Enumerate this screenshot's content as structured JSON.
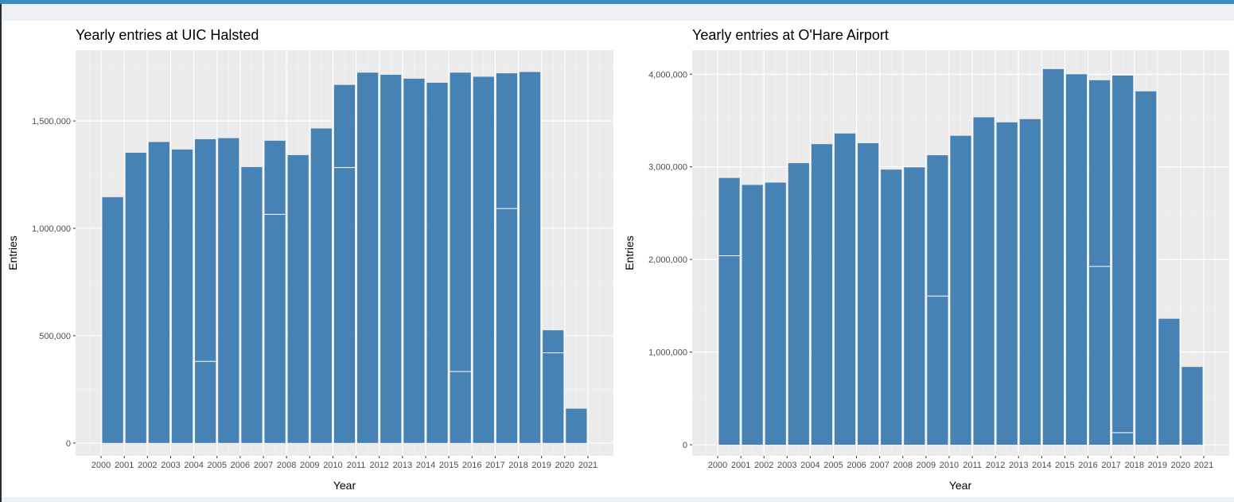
{
  "colors": {
    "bar": "#4682b4",
    "panel_bg": "#ebebeb",
    "grid_major": "#ffffff",
    "grid_minor": "#f5f5f5",
    "tick": "#4d4d4d",
    "accent_top": "#3c8dbc"
  },
  "chart_data": [
    {
      "type": "bar",
      "title": "Yearly entries at UIC Halsted",
      "xlabel": "Year",
      "ylabel": "Entries",
      "x_ticks": [
        "2000",
        "2001",
        "2002",
        "2003",
        "2004",
        "2005",
        "2006",
        "2007",
        "2008",
        "2009",
        "2010",
        "2011",
        "2012",
        "2013",
        "2014",
        "2015",
        "2016",
        "2017",
        "2018",
        "2019",
        "2020",
        "2021"
      ],
      "y_ticks": [
        0,
        500000,
        1000000,
        1500000
      ],
      "y_tick_labels": [
        "0",
        "500,000",
        "1,000,000",
        "1,500,000"
      ],
      "ylim": [
        -60000,
        1830000
      ],
      "grid": true,
      "categories": [
        "2001",
        "2002",
        "2003",
        "2004",
        "2005",
        "2006",
        "2007",
        "2008",
        "2009",
        "2010",
        "2011",
        "2012",
        "2013",
        "2014",
        "2015",
        "2016",
        "2017",
        "2018",
        "2019",
        "2020",
        "2021"
      ],
      "values": [
        1145000,
        1352000,
        1402000,
        1367000,
        1415000,
        1420000,
        1285000,
        1408000,
        1341000,
        1465000,
        1668000,
        1725000,
        1715000,
        1697000,
        1678000,
        1725000,
        1706000,
        1722000,
        1728000,
        525000,
        160000
      ],
      "segment_breaks": [
        {
          "category": "2005",
          "value": 380000
        },
        {
          "category": "2008",
          "value": 1065000
        },
        {
          "category": "2011",
          "value": 1283000
        },
        {
          "category": "2016",
          "value": 333000
        },
        {
          "category": "2018",
          "value": 1092000
        },
        {
          "category": "2020",
          "value": 420000
        }
      ]
    },
    {
      "type": "bar",
      "title": "Yearly entries at O'Hare Airport",
      "xlabel": "Year",
      "ylabel": "Entries",
      "x_ticks": [
        "2000",
        "2001",
        "2002",
        "2003",
        "2004",
        "2005",
        "2006",
        "2007",
        "2008",
        "2009",
        "2010",
        "2011",
        "2012",
        "2013",
        "2014",
        "2015",
        "2016",
        "2017",
        "2018",
        "2019",
        "2020",
        "2021"
      ],
      "y_ticks": [
        0,
        1000000,
        2000000,
        3000000,
        4000000
      ],
      "y_tick_labels": [
        "0",
        "1,000,000",
        "2,000,000",
        "3,000,000",
        "4,000,000"
      ],
      "ylim": [
        -120000,
        4260000
      ],
      "grid": true,
      "categories": [
        "2001",
        "2002",
        "2003",
        "2004",
        "2005",
        "2006",
        "2007",
        "2008",
        "2009",
        "2010",
        "2011",
        "2012",
        "2013",
        "2014",
        "2015",
        "2016",
        "2017",
        "2018",
        "2019",
        "2020",
        "2021"
      ],
      "values": [
        2880000,
        2805000,
        2830000,
        3040000,
        3245000,
        3360000,
        3255000,
        2970000,
        2995000,
        3125000,
        3335000,
        3535000,
        3480000,
        3515000,
        4055000,
        4000000,
        3935000,
        3985000,
        3815000,
        1360000,
        840000
      ],
      "segment_breaks": [
        {
          "category": "2001",
          "value": 2040000
        },
        {
          "category": "2010",
          "value": 1605000
        },
        {
          "category": "2017",
          "value": 1925000
        },
        {
          "category": "2018",
          "value": 130000
        }
      ]
    }
  ]
}
